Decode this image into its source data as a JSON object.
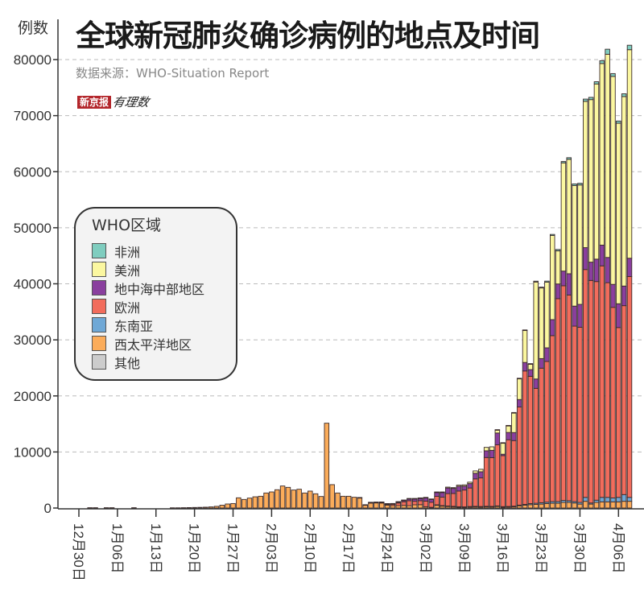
{
  "header": {
    "title": "全球新冠肺炎确诊病例的地点及时间",
    "source": "数据来源：WHO-Situation Report",
    "logo_text": "新京报",
    "logo_sub": "有理数"
  },
  "chart_data": {
    "type": "bar",
    "stacked": true,
    "title": "全球新冠肺炎确诊病例的地点及时间",
    "ylabel": "例数",
    "xlabel": "",
    "ylim": [
      0,
      80000
    ],
    "yticks": [
      0,
      10000,
      20000,
      30000,
      40000,
      50000,
      60000,
      70000,
      80000
    ],
    "xtick_labels": [
      "12月30日",
      "1月06日",
      "1月13日",
      "1月20日",
      "1月27日",
      "2月03日",
      "2月10日",
      "2月17日",
      "2月24日",
      "3月02日",
      "3月09日",
      "3月16日",
      "3月23日",
      "3月30日",
      "4月06日"
    ],
    "grid": "horizontal dashed",
    "legend_title": "WHO区域",
    "legend_position": "middle-left",
    "categories": [
      "12月30日",
      "12月31日",
      "1月01日",
      "1月02日",
      "1月03日",
      "1月04日",
      "1月05日",
      "1月06日",
      "1月07日",
      "1月08日",
      "1月09日",
      "1月10日",
      "1月11日",
      "1月12日",
      "1月13日",
      "1月14日",
      "1月15日",
      "1月16日",
      "1月17日",
      "1月18日",
      "1月19日",
      "1月20日",
      "1月21日",
      "1月22日",
      "1月23日",
      "1月24日",
      "1月25日",
      "1月26日",
      "1月27日",
      "1月28日",
      "1月29日",
      "1月30日",
      "1月31日",
      "2月01日",
      "2月02日",
      "2月03日",
      "2月04日",
      "2月05日",
      "2月06日",
      "2月07日",
      "2月08日",
      "2月09日",
      "2月10日",
      "2月11日",
      "2月12日",
      "2月13日",
      "2月14日",
      "2月15日",
      "2月16日",
      "2月17日",
      "2月18日",
      "2月19日",
      "2月20日",
      "2月21日",
      "2月22日",
      "2月23日",
      "2月24日",
      "2月25日",
      "2月26日",
      "2月27日",
      "2月28日",
      "2月29日",
      "3月01日",
      "3月02日",
      "3月03日",
      "3月04日",
      "3月05日",
      "3月06日",
      "3月07日",
      "3月08日",
      "3月09日",
      "3月10日",
      "3月11日",
      "3月12日",
      "3月13日",
      "3月14日",
      "3月15日",
      "3月16日",
      "3月17日",
      "3月18日",
      "3月19日",
      "3月20日",
      "3月21日",
      "3月22日",
      "3月23日",
      "3月24日",
      "3月25日",
      "3月26日",
      "3月27日",
      "3月28日",
      "3月29日",
      "3月30日",
      "3月31日",
      "4月01日",
      "4月02日",
      "4月03日",
      "4月04日",
      "4月05日",
      "4月06日",
      "4月07日",
      "4月08日"
    ],
    "series": [
      {
        "name": "其他",
        "color": "#cccccc",
        "values": [
          0,
          0,
          60,
          60,
          0,
          60,
          60,
          0,
          0,
          0,
          60,
          0,
          0,
          0,
          0,
          0,
          0,
          0,
          0,
          0,
          0,
          0,
          0,
          0,
          0,
          0,
          0,
          0,
          0,
          0,
          0,
          0,
          0,
          0,
          0,
          0,
          0,
          0,
          0,
          0,
          0,
          0,
          0,
          0,
          0,
          0,
          0,
          0,
          0,
          0,
          0,
          0,
          0,
          0,
          0,
          0,
          0,
          0,
          0,
          0,
          0,
          0,
          0,
          0,
          0,
          0,
          0,
          0,
          0,
          0,
          0,
          0,
          0,
          0,
          0,
          0,
          0,
          0,
          0,
          0,
          0,
          0,
          0,
          0,
          0,
          0,
          0,
          0,
          0,
          0,
          0,
          0,
          0,
          0,
          0,
          0,
          0,
          0,
          0,
          0,
          0
        ]
      },
      {
        "name": "西太平洋地区",
        "color": "#fbac5a",
        "values": [
          0,
          0,
          0,
          0,
          0,
          0,
          0,
          0,
          0,
          0,
          0,
          0,
          0,
          0,
          0,
          0,
          0,
          40,
          40,
          60,
          80,
          100,
          120,
          150,
          200,
          300,
          500,
          720,
          800,
          1820,
          1530,
          1770,
          2000,
          2100,
          2680,
          2870,
          3260,
          3930,
          3690,
          3210,
          3350,
          2680,
          3020,
          2540,
          2060,
          15130,
          4170,
          2680,
          2100,
          2100,
          1920,
          1870,
          575,
          960,
          960,
          900,
          520,
          430,
          430,
          470,
          420,
          580,
          600,
          230,
          130,
          570,
          420,
          350,
          280,
          200,
          180,
          230,
          250,
          220,
          250,
          230,
          300,
          200,
          200,
          230,
          400,
          500,
          600,
          650,
          700,
          800,
          850,
          850,
          1000,
          1000,
          900,
          700,
          1200,
          700,
          1000,
          1100,
          1100,
          1100,
          1100,
          1200,
          1200
        ]
      },
      {
        "name": "东南亚",
        "color": "#6fa8d6",
        "values": [
          0,
          0,
          0,
          0,
          0,
          0,
          0,
          0,
          0,
          0,
          0,
          0,
          0,
          0,
          0,
          0,
          0,
          0,
          0,
          0,
          0,
          0,
          0,
          0,
          0,
          0,
          0,
          0,
          0,
          0,
          0,
          0,
          0,
          0,
          0,
          0,
          0,
          0,
          0,
          0,
          0,
          0,
          0,
          0,
          0,
          0,
          0,
          0,
          0,
          0,
          0,
          0,
          0,
          0,
          0,
          0,
          0,
          0,
          0,
          0,
          0,
          0,
          0,
          0,
          0,
          10,
          10,
          20,
          20,
          30,
          30,
          40,
          50,
          50,
          60,
          60,
          80,
          50,
          80,
          100,
          120,
          150,
          200,
          200,
          250,
          250,
          300,
          300,
          350,
          300,
          250,
          300,
          700,
          200,
          400,
          800,
          800,
          700,
          800,
          1200,
          700
        ]
      },
      {
        "name": "欧洲",
        "color": "#f26c5c",
        "values": [
          0,
          0,
          0,
          0,
          0,
          0,
          0,
          0,
          0,
          0,
          0,
          0,
          0,
          0,
          0,
          0,
          0,
          0,
          0,
          0,
          0,
          0,
          0,
          0,
          0,
          0,
          0,
          0,
          0,
          0,
          0,
          0,
          0,
          0,
          0,
          0,
          0,
          0,
          0,
          0,
          0,
          0,
          0,
          0,
          0,
          0,
          0,
          0,
          0,
          0,
          0,
          0,
          0,
          20,
          50,
          100,
          150,
          250,
          470,
          650,
          880,
          620,
          700,
          1000,
          900,
          1500,
          1500,
          2200,
          2300,
          2800,
          3000,
          3300,
          4900,
          5100,
          8700,
          8700,
          10900,
          9100,
          11900,
          11700,
          17500,
          23800,
          22700,
          20500,
          24000,
          25100,
          29600,
          36200,
          38300,
          36700,
          31300,
          31250,
          40650,
          39700,
          39000,
          41300,
          38300,
          34000,
          30300,
          33700,
          39400
        ]
      },
      {
        "name": "地中海中部地区",
        "color": "#8a3f9e",
        "values": [
          0,
          0,
          0,
          0,
          0,
          0,
          0,
          0,
          0,
          0,
          0,
          0,
          0,
          0,
          0,
          0,
          0,
          0,
          0,
          0,
          0,
          0,
          0,
          0,
          0,
          0,
          0,
          0,
          0,
          0,
          0,
          0,
          0,
          0,
          0,
          0,
          0,
          0,
          0,
          0,
          0,
          0,
          0,
          0,
          0,
          0,
          0,
          0,
          0,
          0,
          0,
          10,
          20,
          50,
          60,
          80,
          100,
          110,
          200,
          260,
          330,
          420,
          420,
          590,
          520,
          680,
          830,
          1000,
          900,
          850,
          700,
          790,
          1000,
          1100,
          1200,
          1300,
          2100,
          250,
          1300,
          1430,
          1330,
          1520,
          1190,
          1670,
          1710,
          2430,
          2860,
          2620,
          2620,
          3800,
          3570,
          4080,
          3900,
          3260,
          4000,
          3700,
          4500,
          4100,
          4240,
          3500,
          3260
        ]
      },
      {
        "name": "美洲",
        "color": "#fbf7a0",
        "values": [
          0,
          0,
          0,
          0,
          0,
          0,
          0,
          0,
          0,
          0,
          0,
          0,
          0,
          0,
          0,
          0,
          0,
          0,
          0,
          0,
          0,
          0,
          0,
          0,
          0,
          0,
          0,
          0,
          0,
          0,
          0,
          0,
          0,
          0,
          0,
          0,
          0,
          0,
          0,
          0,
          0,
          0,
          0,
          0,
          0,
          0,
          0,
          0,
          0,
          0,
          0,
          0,
          0,
          0,
          0,
          0,
          20,
          20,
          40,
          50,
          80,
          90,
          90,
          80,
          70,
          110,
          110,
          160,
          140,
          200,
          220,
          250,
          420,
          440,
          610,
          630,
          550,
          2000,
          1200,
          3500,
          3700,
          5700,
          950,
          17300,
          12600,
          11700,
          15000,
          5900,
          19300,
          20400,
          21500,
          21300,
          26100,
          29000,
          31250,
          32400,
          36250,
          37100,
          32200,
          33800,
          37200
        ]
      },
      {
        "name": "非洲",
        "color": "#7fcdbf",
        "values": [
          0,
          0,
          0,
          0,
          0,
          0,
          0,
          0,
          0,
          0,
          0,
          0,
          0,
          0,
          0,
          0,
          0,
          0,
          0,
          0,
          0,
          0,
          0,
          0,
          0,
          0,
          0,
          0,
          0,
          0,
          0,
          0,
          0,
          0,
          0,
          0,
          0,
          0,
          0,
          0,
          0,
          0,
          0,
          0,
          0,
          0,
          0,
          0,
          0,
          0,
          0,
          0,
          0,
          0,
          0,
          0,
          0,
          0,
          0,
          0,
          0,
          0,
          0,
          0,
          0,
          0,
          0,
          0,
          0,
          0,
          0,
          0,
          0,
          0,
          0,
          0,
          50,
          60,
          60,
          80,
          100,
          100,
          120,
          150,
          150,
          200,
          200,
          250,
          250,
          300,
          300,
          300,
          400,
          400,
          400,
          500,
          900,
          500,
          400,
          500,
          800
        ]
      }
    ],
    "legend_order": [
      "非洲",
      "美洲",
      "地中海中部地区",
      "欧洲",
      "东南亚",
      "西太平洋地区",
      "其他"
    ]
  }
}
